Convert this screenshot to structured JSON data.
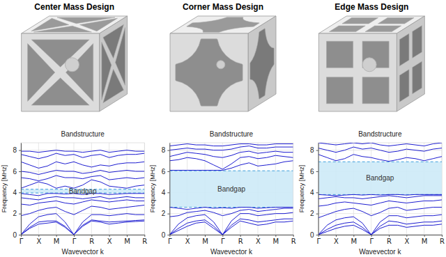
{
  "chart_data": [
    {
      "type": "line",
      "title": "Center Mass Design",
      "subtitle": "Bandstructure",
      "xlabel": "Wavevector k",
      "ylabel": "Frequency [MHz]",
      "x": [
        0,
        0.5,
        1,
        1.5,
        2,
        2.5,
        3,
        3.5,
        4,
        4.5,
        5,
        5.5,
        6,
        6.5,
        7
      ],
      "color": "#1c1cd0",
      "series": [
        {
          "values": [
            0,
            0.6,
            1.0,
            1.1,
            1.2,
            0.7,
            0,
            0.8,
            1.3,
            1.2,
            1.0,
            1.1,
            1.2,
            1.25,
            1.3
          ]
        },
        {
          "values": [
            0,
            0.7,
            1.2,
            1.3,
            1.3,
            0.8,
            0,
            0.9,
            1.4,
            1.3,
            1.2,
            1.25,
            1.3,
            1.35,
            1.4
          ]
        },
        {
          "values": [
            0,
            1.0,
            1.7,
            1.9,
            2.0,
            1.2,
            0,
            1.2,
            1.9,
            1.9,
            1.8,
            1.9,
            2.0,
            1.9,
            1.9
          ]
        },
        {
          "values": [
            1.8,
            2.0,
            2.3,
            2.5,
            2.6,
            2.2,
            1.9,
            2.3,
            2.7,
            2.6,
            2.4,
            2.5,
            2.6,
            2.7,
            2.8
          ]
        },
        {
          "values": [
            2.9,
            2.8,
            3.0,
            3.1,
            3.2,
            3.0,
            2.9,
            3.1,
            3.3,
            3.2,
            3.1,
            3.2,
            3.3,
            3.2,
            3.2
          ]
        },
        {
          "values": [
            3.5,
            3.4,
            3.3,
            3.5,
            3.6,
            3.5,
            3.5,
            3.4,
            3.5,
            3.6,
            3.4,
            3.5,
            3.6,
            3.5,
            3.5
          ]
        },
        {
          "values": [
            3.9,
            3.8,
            3.7,
            3.9,
            3.9,
            3.85,
            3.9,
            3.8,
            3.9,
            3.9,
            3.8,
            3.85,
            3.9,
            3.9,
            3.9
          ]
        },
        {
          "values": [
            4.4,
            4.7,
            5.0,
            4.8,
            4.4,
            4.6,
            4.4,
            4.7,
            5.2,
            5.0,
            4.6,
            4.5,
            4.4,
            4.6,
            4.7
          ]
        },
        {
          "values": [
            5.4,
            5.3,
            5.1,
            5.3,
            5.6,
            5.4,
            5.4,
            5.3,
            5.5,
            5.6,
            5.2,
            5.3,
            5.4,
            5.3,
            5.4
          ]
        },
        {
          "values": [
            6.0,
            5.9,
            5.7,
            5.9,
            6.1,
            6.0,
            6.0,
            5.8,
            5.9,
            6.1,
            5.9,
            6.0,
            6.1,
            6.0,
            6.0
          ]
        },
        {
          "values": [
            6.9,
            6.6,
            6.3,
            6.5,
            6.9,
            6.7,
            6.9,
            6.6,
            6.4,
            6.6,
            6.5,
            6.7,
            6.8,
            6.8,
            6.9
          ]
        },
        {
          "values": [
            7.6,
            7.4,
            7.2,
            7.4,
            7.7,
            7.5,
            7.6,
            7.3,
            7.5,
            7.6,
            7.3,
            7.5,
            7.6,
            7.6,
            7.7
          ]
        },
        {
          "values": [
            7.9,
            7.9,
            7.8,
            7.9,
            8.0,
            7.9,
            7.9,
            7.8,
            7.9,
            8.0,
            7.8,
            7.9,
            8.0,
            7.9,
            7.9
          ]
        }
      ],
      "xlim": [
        0,
        7
      ],
      "ylim": [
        0,
        8.7
      ],
      "xticks": [
        {
          "value": 0,
          "label": "Γ"
        },
        {
          "value": 1,
          "label": "X"
        },
        {
          "value": 2,
          "label": "M"
        },
        {
          "value": 3,
          "label": "Γ"
        },
        {
          "value": 4,
          "label": "R"
        },
        {
          "value": 5,
          "label": "X"
        },
        {
          "value": 6,
          "label": "M"
        },
        {
          "value": 7,
          "label": "R"
        }
      ],
      "yticks": [
        0,
        2,
        4,
        6,
        8
      ],
      "grid": true,
      "annotations": [
        {
          "text": "Bandgap",
          "y0": 3.95,
          "y1": 4.3
        }
      ]
    },
    {
      "type": "line",
      "title": "Corner Mass Design",
      "subtitle": "Bandstructure",
      "xlabel": "Wavevector k",
      "ylabel": "Frequency [MHz]",
      "x": [
        0,
        0.5,
        1,
        1.5,
        2,
        2.5,
        3,
        3.5,
        4,
        4.5,
        5,
        5.5,
        6,
        6.5,
        7
      ],
      "color": "#1c1cd0",
      "series": [
        {
          "values": [
            0,
            0.4,
            0.8,
            1.1,
            1.2,
            0.6,
            0,
            0.7,
            1.3,
            1.1,
            0.9,
            1.0,
            1.2,
            1.2,
            1.3
          ]
        },
        {
          "values": [
            0,
            0.6,
            1.1,
            1.3,
            1.4,
            0.8,
            0,
            0.9,
            1.5,
            1.4,
            1.2,
            1.3,
            1.4,
            1.5,
            1.5
          ]
        },
        {
          "values": [
            0,
            1.0,
            1.6,
            1.8,
            1.9,
            1.2,
            0,
            1.3,
            2.0,
            2.0,
            1.8,
            1.9,
            2.0,
            2.0,
            2.1
          ]
        },
        {
          "values": [
            1.7,
            1.8,
            2.1,
            2.2,
            2.3,
            2.1,
            1.8,
            2.0,
            2.3,
            2.4,
            2.2,
            2.3,
            2.4,
            2.5,
            2.5
          ]
        },
        {
          "values": [
            2.6,
            2.5,
            2.4,
            2.5,
            2.6,
            2.5,
            2.55,
            2.5,
            2.6,
            2.6,
            2.5,
            2.55,
            2.6,
            2.6,
            2.6
          ]
        },
        {
          "values": [
            6.1,
            6.1,
            6.1,
            6.1,
            6.1,
            6.1,
            6.1,
            6.3,
            6.6,
            6.8,
            6.5,
            6.6,
            6.7,
            6.9,
            7.0
          ]
        },
        {
          "values": [
            7.0,
            7.1,
            7.3,
            7.2,
            7.0,
            6.6,
            6.2,
            6.7,
            7.3,
            7.4,
            7.2,
            7.3,
            7.5,
            7.4,
            7.3
          ]
        },
        {
          "values": [
            7.4,
            7.6,
            7.8,
            7.7,
            7.6,
            7.4,
            7.3,
            7.5,
            7.8,
            7.9,
            7.7,
            7.8,
            7.9,
            7.8,
            7.8
          ]
        },
        {
          "values": [
            8.0,
            8.1,
            8.2,
            8.1,
            8.1,
            8.0,
            8.0,
            8.1,
            8.3,
            8.4,
            8.2,
            8.2,
            8.3,
            8.3,
            8.3
          ]
        },
        {
          "values": [
            8.4,
            8.5,
            8.6,
            8.5,
            8.5,
            8.4,
            8.4,
            8.5,
            8.6,
            8.6,
            8.5,
            8.5,
            8.6,
            8.6,
            8.6
          ]
        }
      ],
      "xlim": [
        0,
        7
      ],
      "ylim": [
        0,
        8.7
      ],
      "xticks": [
        {
          "value": 0,
          "label": "Γ"
        },
        {
          "value": 1,
          "label": "X"
        },
        {
          "value": 2,
          "label": "M"
        },
        {
          "value": 3,
          "label": "Γ"
        },
        {
          "value": 4,
          "label": "R"
        },
        {
          "value": 5,
          "label": "X"
        },
        {
          "value": 6,
          "label": "M"
        },
        {
          "value": 7,
          "label": "R"
        }
      ],
      "yticks": [
        0,
        2,
        4,
        6,
        8
      ],
      "grid": true,
      "annotations": [
        {
          "text": "Bandgap",
          "y0": 2.6,
          "y1": 6.05
        }
      ]
    },
    {
      "type": "line",
      "title": "Edge Mass Design",
      "subtitle": "Bandstructure",
      "xlabel": "Wavevector k",
      "ylabel": "Frequency [MHz]",
      "x": [
        0,
        0.5,
        1,
        1.5,
        2,
        2.5,
        3,
        3.5,
        4,
        4.5,
        5,
        5.5,
        6,
        6.5,
        7
      ],
      "color": "#1c1cd0",
      "series": [
        {
          "values": [
            0,
            0.3,
            0.6,
            0.8,
            0.9,
            0.5,
            0,
            0.6,
            0.9,
            0.9,
            0.7,
            0.8,
            0.9,
            0.9,
            1.0
          ]
        },
        {
          "values": [
            0,
            0.5,
            0.9,
            1.1,
            1.2,
            0.7,
            0,
            0.8,
            1.3,
            1.2,
            1.0,
            1.1,
            1.2,
            1.2,
            1.3
          ]
        },
        {
          "values": [
            0,
            0.9,
            1.4,
            1.6,
            1.7,
            1.1,
            0,
            1.2,
            1.8,
            1.8,
            1.6,
            1.7,
            1.8,
            1.8,
            1.9
          ]
        },
        {
          "values": [
            1.6,
            1.9,
            2.2,
            2.4,
            2.5,
            2.2,
            1.8,
            2.1,
            2.5,
            2.6,
            2.3,
            2.4,
            2.5,
            2.6,
            2.6
          ]
        },
        {
          "values": [
            2.7,
            2.8,
            3.0,
            3.1,
            3.0,
            2.9,
            2.8,
            3.0,
            3.2,
            3.1,
            3.0,
            3.1,
            3.2,
            3.2,
            3.3
          ]
        },
        {
          "values": [
            3.4,
            3.5,
            3.6,
            3.5,
            3.5,
            3.4,
            3.5,
            3.6,
            3.7,
            3.6,
            3.5,
            3.6,
            3.7,
            3.7,
            3.7
          ]
        },
        {
          "values": [
            3.8,
            3.75,
            3.7,
            3.75,
            3.8,
            3.75,
            3.8,
            3.75,
            3.8,
            3.8,
            3.75,
            3.8,
            3.8,
            3.8,
            3.8
          ]
        },
        {
          "values": [
            7.6,
            7.3,
            7.0,
            7.2,
            7.6,
            7.4,
            7.3,
            7.1,
            6.95,
            7.1,
            7.3,
            7.2,
            7.0,
            7.2,
            7.4
          ]
        },
        {
          "values": [
            8.2,
            8.0,
            7.8,
            8.0,
            8.3,
            8.1,
            8.2,
            8.0,
            7.8,
            7.9,
            8.1,
            8.0,
            7.9,
            8.1,
            8.2
          ]
        },
        {
          "values": [
            8.7,
            8.6,
            8.5,
            8.6,
            8.7,
            8.6,
            8.7,
            8.5,
            8.4,
            8.5,
            8.6,
            8.5,
            8.4,
            8.6,
            8.7
          ]
        }
      ],
      "xlim": [
        0,
        7
      ],
      "ylim": [
        0,
        8.7
      ],
      "xticks": [
        {
          "value": 0,
          "label": "Γ"
        },
        {
          "value": 1,
          "label": "X"
        },
        {
          "value": 2,
          "label": "M"
        },
        {
          "value": 3,
          "label": "Γ"
        },
        {
          "value": 4,
          "label": "R"
        },
        {
          "value": 5,
          "label": "X"
        },
        {
          "value": 6,
          "label": "M"
        },
        {
          "value": 7,
          "label": "R"
        }
      ],
      "yticks": [
        0,
        2,
        4,
        6,
        8
      ],
      "grid": true,
      "annotations": [
        {
          "text": "Bandgap",
          "y0": 3.8,
          "y1": 6.9
        }
      ]
    }
  ]
}
